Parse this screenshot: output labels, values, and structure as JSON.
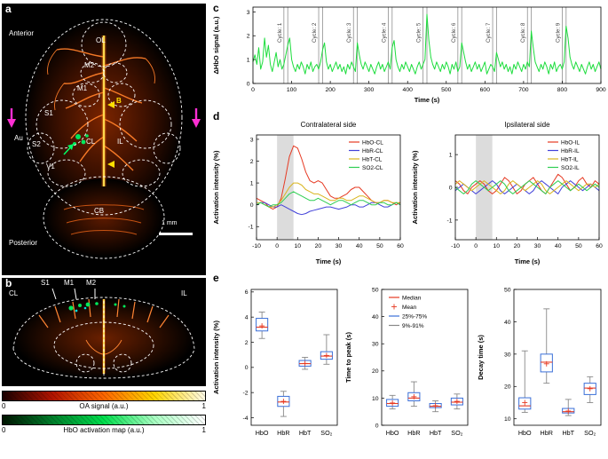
{
  "panel_a": {
    "tag": "a",
    "orientation_top": "Anterior",
    "orientation_bottom": "Posterior",
    "labels": {
      "ol": "OL",
      "m2": "M2",
      "m1": "M1",
      "s1": "S1",
      "au": "Au",
      "s2": "S2",
      "cl": "CL",
      "il": "IL",
      "v1": "V1",
      "cb": "CB",
      "bregma": "B"
    },
    "scale_bar": "1 mm"
  },
  "panel_b": {
    "tag": "b",
    "labels": {
      "s1": "S1",
      "m1": "M1",
      "m2": "M2",
      "cl": "CL",
      "il": "IL"
    }
  },
  "colorbars": [
    {
      "min": "0",
      "max": "1",
      "label": "OA signal (a.u.)",
      "gradient": [
        "#1a0000",
        "#b31500",
        "#ff6600",
        "#ffd500",
        "#fffbe6"
      ]
    },
    {
      "min": "0",
      "max": "1",
      "label": "HbO activation map (a.u.)",
      "gradient": [
        "#001500",
        "#00802b",
        "#00e04d",
        "#a8ffc2",
        "#ffffff"
      ]
    }
  ],
  "chart_data": [
    {
      "id": "c",
      "panel_tag": "c",
      "type": "line",
      "xlabel": "Time (s)",
      "ylabel": "ΔHbO signal (a.u.)",
      "xlim": [
        0,
        900
      ],
      "ylim": [
        0,
        3.2
      ],
      "xticks": [
        0,
        100,
        200,
        300,
        400,
        500,
        600,
        700,
        800,
        900
      ],
      "yticks": [
        0,
        1,
        2,
        3
      ],
      "cycle_markers": [
        [
          80,
          90
        ],
        [
          170,
          180
        ],
        [
          260,
          270
        ],
        [
          350,
          360
        ],
        [
          440,
          450
        ],
        [
          530,
          540
        ],
        [
          620,
          630
        ],
        [
          710,
          720
        ],
        [
          800,
          810
        ]
      ],
      "cycle_labels": [
        "Cycle: 1",
        "Cycle: 2",
        "Cycle: 3",
        "Cycle: 4",
        "Cycle: 5",
        "Cycle: 6",
        "Cycle: 7",
        "Cycle: 8",
        "Cycle: 9"
      ],
      "series": [
        {
          "name": "dHbO",
          "color": "#1ddd3d",
          "x_start": 0,
          "x_step": 5,
          "values": [
            0.9,
            1.2,
            0.8,
            1.5,
            0.6,
            0.9,
            1.9,
            1.1,
            1.6,
            0.8,
            0.5,
            0.9,
            1.3,
            0.7,
            1.0,
            0.6,
            0.8,
            1.2,
            1.6,
            1.9,
            1.0,
            0.7,
            0.5,
            0.8,
            0.6,
            0.9,
            0.7,
            0.4,
            0.8,
            0.6,
            0.9,
            0.5,
            0.7,
            0.8,
            0.6,
            0.9,
            1.4,
            1.7,
            0.9,
            0.6,
            0.8,
            0.5,
            0.7,
            0.9,
            0.6,
            0.8,
            0.5,
            0.7,
            0.4,
            0.8,
            0.6,
            0.9,
            0.7,
            0.5,
            1.7,
            1.2,
            0.8,
            0.6,
            0.9,
            0.7,
            0.5,
            0.8,
            0.6,
            0.4,
            0.7,
            0.9,
            0.6,
            0.8,
            0.5,
            0.7,
            0.9,
            0.6,
            1.5,
            1.8,
            1.0,
            0.7,
            0.5,
            0.8,
            0.6,
            0.9,
            0.7,
            0.5,
            0.8,
            0.6,
            0.4,
            0.7,
            0.9,
            0.6,
            0.8,
            1.0,
            2.9,
            1.8,
            1.1,
            0.8,
            0.6,
            0.9,
            0.7,
            0.5,
            0.8,
            0.6,
            0.9,
            0.7,
            0.4,
            0.8,
            0.6,
            0.9,
            0.5,
            0.7,
            1.7,
            1.3,
            0.9,
            0.6,
            0.8,
            0.5,
            0.7,
            0.9,
            0.6,
            0.8,
            0.5,
            0.7,
            0.9,
            0.4,
            0.6,
            0.8,
            0.7,
            0.5,
            1.3,
            1.0,
            0.7,
            0.9,
            0.6,
            0.8,
            0.5,
            0.7,
            0.4,
            0.8,
            0.6,
            0.9,
            0.7,
            0.5,
            0.8,
            0.6,
            0.9,
            0.7,
            2.2,
            1.5,
            0.9,
            0.7,
            0.5,
            0.8,
            0.6,
            0.9,
            0.7,
            0.4,
            0.8,
            0.6,
            0.9,
            0.5,
            0.7,
            0.8,
            0.6,
            0.9,
            2.4,
            1.9,
            1.1,
            0.8,
            0.6,
            0.9,
            0.7,
            0.5,
            0.8,
            0.6,
            0.4,
            0.7,
            0.9,
            0.6,
            0.8,
            0.5,
            0.7,
            0.9,
            0.6
          ]
        }
      ]
    },
    {
      "id": "d-left",
      "panel_tag": "d",
      "type": "line",
      "title": "Contralateral side",
      "xlabel": "Time (s)",
      "ylabel": "Activation intensity (%)",
      "xlim": [
        -10,
        60
      ],
      "ylim": [
        -1.6,
        3.2
      ],
      "xticks": [
        -10,
        0,
        10,
        20,
        30,
        40,
        50,
        60
      ],
      "yticks": [
        -1,
        0,
        1,
        2,
        3
      ],
      "stim_band": [
        0,
        8
      ],
      "legend": true,
      "series": [
        {
          "name": "HbO-CL",
          "color": "#e63a23",
          "x_start": -10,
          "x_step": 2,
          "values": [
            0.3,
            0.2,
            0.1,
            -0.1,
            -0.2,
            -0.1,
            0.3,
            1.2,
            2.2,
            2.7,
            2.6,
            2.1,
            1.5,
            1.1,
            1.0,
            1.1,
            1.0,
            0.7,
            0.4,
            0.3,
            0.3,
            0.4,
            0.5,
            0.7,
            0.8,
            0.8,
            0.6,
            0.4,
            0.2,
            0.1,
            0.1,
            0.2,
            0.2,
            0.1,
            0.0,
            0.1
          ]
        },
        {
          "name": "HbR-CL",
          "color": "#4343d9",
          "x_start": -10,
          "x_step": 2,
          "values": [
            0.0,
            0.1,
            0.1,
            0.0,
            -0.1,
            -0.1,
            0.0,
            -0.1,
            -0.2,
            -0.3,
            -0.4,
            -0.45,
            -0.4,
            -0.3,
            -0.25,
            -0.2,
            -0.15,
            -0.1,
            -0.1,
            -0.15,
            -0.2,
            -0.15,
            -0.1,
            0.0,
            0.0,
            -0.1,
            -0.1,
            0.0,
            0.1,
            0.1,
            0.0,
            -0.1,
            -0.1,
            0.0,
            0.1,
            0.0
          ]
        },
        {
          "name": "HbT-CL",
          "color": "#d9b51f",
          "x_start": -10,
          "x_step": 2,
          "values": [
            0.1,
            0.1,
            0.0,
            -0.1,
            -0.1,
            0.0,
            0.2,
            0.5,
            0.8,
            1.0,
            1.0,
            0.9,
            0.7,
            0.6,
            0.5,
            0.5,
            0.4,
            0.3,
            0.2,
            0.2,
            0.3,
            0.3,
            0.2,
            0.2,
            0.3,
            0.4,
            0.4,
            0.3,
            0.2,
            0.1,
            0.1,
            0.2,
            0.2,
            0.1,
            0.1,
            0.1
          ]
        },
        {
          "name": "SO2-CL",
          "color": "#2fce52",
          "x_start": -10,
          "x_step": 2,
          "values": [
            0.0,
            0.1,
            0.0,
            -0.1,
            0.0,
            0.0,
            0.1,
            0.3,
            0.5,
            0.6,
            0.5,
            0.4,
            0.3,
            0.2,
            0.2,
            0.3,
            0.2,
            0.1,
            0.0,
            0.1,
            0.2,
            0.2,
            0.1,
            0.0,
            0.1,
            0.2,
            0.2,
            0.1,
            0.0,
            0.0,
            0.1,
            0.1,
            0.0,
            0.0,
            0.1,
            0.0
          ]
        }
      ]
    },
    {
      "id": "d-right",
      "panel_tag": "d",
      "type": "line",
      "title": "Ipsilateral side",
      "xlabel": "Time (s)",
      "ylabel": "Activation intensity (%)",
      "xlim": [
        -10,
        60
      ],
      "ylim": [
        -1.6,
        1.6
      ],
      "xticks": [
        -10,
        0,
        10,
        20,
        30,
        40,
        50,
        60
      ],
      "yticks": [
        -1,
        0,
        1
      ],
      "stim_band": [
        0,
        8
      ],
      "legend": true,
      "series": [
        {
          "name": "HbO-IL",
          "color": "#e63a23",
          "x_start": -10,
          "x_step": 2,
          "values": [
            0.2,
            0.1,
            -0.1,
            -0.2,
            0.0,
            0.1,
            0.2,
            0.1,
            -0.1,
            -0.2,
            -0.1,
            0.1,
            0.3,
            0.2,
            0.0,
            -0.2,
            -0.1,
            0.1,
            0.2,
            0.3,
            0.1,
            -0.1,
            -0.2,
            0.0,
            0.2,
            0.4,
            0.3,
            0.1,
            -0.1,
            0.0,
            0.2,
            0.3,
            0.1,
            0.0,
            0.2,
            0.1
          ]
        },
        {
          "name": "HbR-IL",
          "color": "#4343d9",
          "x_start": -10,
          "x_step": 2,
          "values": [
            -0.1,
            0.0,
            0.1,
            0.0,
            -0.1,
            -0.2,
            -0.1,
            0.0,
            0.1,
            0.2,
            0.1,
            -0.1,
            -0.2,
            -0.1,
            0.0,
            0.1,
            0.0,
            -0.1,
            -0.2,
            -0.1,
            0.1,
            0.2,
            0.1,
            0.0,
            -0.1,
            -0.2,
            0.0,
            0.1,
            0.2,
            0.1,
            0.0,
            -0.1,
            0.0,
            0.1,
            0.0,
            -0.1
          ]
        },
        {
          "name": "HbT-IL",
          "color": "#d9b51f",
          "x_start": -10,
          "x_step": 2,
          "values": [
            0.1,
            0.2,
            0.1,
            0.0,
            -0.1,
            0.0,
            0.1,
            0.2,
            0.1,
            0.0,
            -0.1,
            -0.2,
            -0.1,
            0.1,
            0.2,
            0.1,
            0.0,
            -0.1,
            0.0,
            0.1,
            0.2,
            0.1,
            -0.1,
            -0.2,
            -0.1,
            0.0,
            0.1,
            0.2,
            0.1,
            0.0,
            -0.1,
            0.0,
            0.1,
            0.1,
            0.0,
            0.1
          ]
        },
        {
          "name": "SO2-IL",
          "color": "#2fce52",
          "x_start": -10,
          "x_step": 2,
          "values": [
            0.0,
            -0.1,
            -0.2,
            -0.1,
            0.1,
            0.2,
            0.1,
            0.0,
            -0.1,
            0.0,
            0.1,
            0.2,
            0.1,
            -0.1,
            -0.2,
            -0.1,
            0.0,
            0.1,
            0.2,
            0.1,
            0.0,
            -0.1,
            -0.2,
            0.0,
            0.1,
            0.2,
            0.1,
            0.0,
            -0.1,
            0.0,
            0.1,
            0.0,
            -0.1,
            0.0,
            0.1,
            0.0
          ]
        }
      ]
    },
    {
      "id": "e1",
      "panel_tag": "e",
      "type": "box",
      "ylabel": "Activation intensity (%)",
      "ylim": [
        -4.6,
        6.2
      ],
      "yticks": [
        -4,
        -2,
        0,
        2,
        4,
        6
      ],
      "categories": [
        "HbO",
        "HbR",
        "HbT",
        "SO₂"
      ],
      "boxes": [
        {
          "whislo": 2.3,
          "q1": 2.9,
          "med": 3.2,
          "mean": 3.3,
          "q3": 3.9,
          "whishi": 4.4
        },
        {
          "whislo": -3.9,
          "q1": -3.1,
          "med": -2.75,
          "mean": -2.7,
          "q3": -2.3,
          "whishi": -1.9
        },
        {
          "whislo": -0.15,
          "q1": 0.1,
          "med": 0.3,
          "mean": 0.32,
          "q3": 0.55,
          "whishi": 0.8
        },
        {
          "whislo": 0.25,
          "q1": 0.65,
          "med": 0.9,
          "mean": 0.95,
          "q3": 1.25,
          "whishi": 2.6
        }
      ]
    },
    {
      "id": "e2",
      "panel_tag": "e",
      "type": "box",
      "ylabel": "Time to peak (s)",
      "ylim": [
        0,
        50
      ],
      "yticks": [
        0,
        10,
        20,
        30,
        40,
        50
      ],
      "categories": [
        "HbO",
        "HbR",
        "HbT",
        "SO₂"
      ],
      "legend_labels": [
        "Median",
        "Mean",
        "25%-75%",
        "9%-91%"
      ],
      "boxes": [
        {
          "whislo": 6,
          "q1": 7,
          "med": 8,
          "mean": 8.2,
          "q3": 9.5,
          "whishi": 11
        },
        {
          "whislo": 7,
          "q1": 9,
          "med": 10,
          "mean": 10.5,
          "q3": 12,
          "whishi": 16
        },
        {
          "whislo": 5,
          "q1": 6.5,
          "med": 7,
          "mean": 7.2,
          "q3": 8,
          "whishi": 9
        },
        {
          "whislo": 6,
          "q1": 7.5,
          "med": 8.5,
          "mean": 8.8,
          "q3": 10,
          "whishi": 11.5
        }
      ]
    },
    {
      "id": "e3",
      "panel_tag": "e",
      "type": "box",
      "ylabel": "Decay time (s)",
      "ylim": [
        8,
        50
      ],
      "yticks": [
        10,
        20,
        30,
        40,
        50
      ],
      "categories": [
        "HbO",
        "HbR",
        "HbT",
        "SO₂"
      ],
      "boxes": [
        {
          "whislo": 12,
          "q1": 13,
          "med": 14,
          "mean": 15,
          "q3": 16.5,
          "whishi": 31
        },
        {
          "whislo": 21,
          "q1": 24.5,
          "med": 27.5,
          "mean": 27,
          "q3": 30,
          "whishi": 44
        },
        {
          "whislo": 11,
          "q1": 11.8,
          "med": 12.2,
          "mean": 12.4,
          "q3": 13.2,
          "whishi": 16
        },
        {
          "whislo": 15,
          "q1": 17.5,
          "med": 19.5,
          "mean": 19.3,
          "q3": 21,
          "whishi": 23
        }
      ]
    }
  ]
}
